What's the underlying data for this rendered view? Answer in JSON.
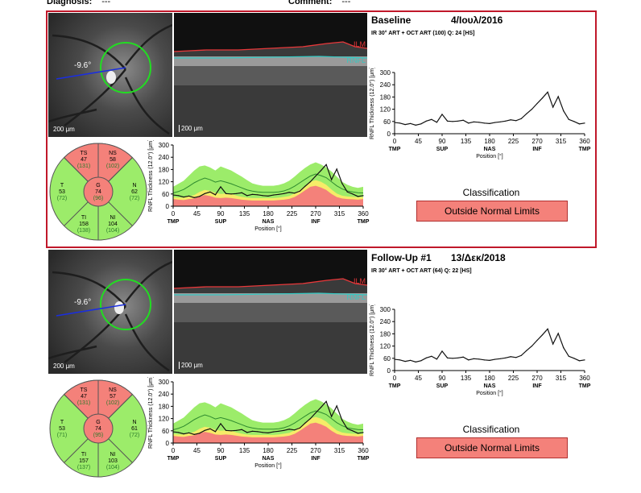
{
  "header": {
    "diagnosis_label": "Diagnosis:",
    "diagnosis_value": "---",
    "comment_label": "Comment:",
    "comment_value": "---"
  },
  "colors": {
    "selected_border": "#c0182a",
    "outside_limits": "#f4817a",
    "within_limits": "#9cec6a",
    "borderline": "#f6ec68",
    "scan_circle": "#22dd22",
    "scan_line": "#1a2ee0",
    "ilm": "#e8383a",
    "rnfl": "#36c8c2"
  },
  "exams": [
    {
      "title": "Baseline",
      "date": "4/Ιουλ/2016",
      "subtitle": "IR 30° ART + OCT ART (100) Q: 24 [HS]",
      "angle": "-9.6°",
      "scale": "200 μm",
      "oct_labels": {
        "ilm": "ILM",
        "rnfl": "RNFL"
      },
      "classification_label": "Classification",
      "classification_value": "Outside Normal Limits",
      "sectors": {
        "TS": {
          "name": "TS",
          "value": "47",
          "normal": "(131)"
        },
        "NS": {
          "name": "NS",
          "value": "58",
          "normal": "(102)"
        },
        "T": {
          "name": "T",
          "value": "53",
          "normal": "(72)"
        },
        "G": {
          "name": "G",
          "value": "74",
          "normal": "(96)"
        },
        "N": {
          "name": "N",
          "value": "62",
          "normal": "(72)"
        },
        "TI": {
          "name": "TI",
          "value": "158",
          "normal": "(138)"
        },
        "NI": {
          "name": "NI",
          "value": "104",
          "normal": "(104)"
        }
      }
    },
    {
      "title": "Follow-Up #1",
      "date": "13/Δεκ/2018",
      "subtitle": "IR 30° ART + OCT ART (64) Q: 22 [HS]",
      "angle": "-9.6°",
      "scale": "200 μm",
      "oct_labels": {
        "ilm": "ILM",
        "rnfl": "RNFL"
      },
      "classification_label": "Classification",
      "classification_value": "Outside Normal Limits",
      "sectors": {
        "TS": {
          "name": "TS",
          "value": "47",
          "normal": "(131)"
        },
        "NS": {
          "name": "NS",
          "value": "57",
          "normal": "(102)"
        },
        "T": {
          "name": "T",
          "value": "53",
          "normal": "(71)"
        },
        "G": {
          "name": "G",
          "value": "74",
          "normal": "(95)"
        },
        "N": {
          "name": "N",
          "value": "61",
          "normal": "(72)"
        },
        "TI": {
          "name": "TI",
          "value": "157",
          "normal": "(137)"
        },
        "NI": {
          "name": "NI",
          "value": "103",
          "normal": "(104)"
        }
      }
    }
  ],
  "chart_data": [
    {
      "type": "line",
      "ylabel": "RNFL Thickness (12.0°) [μm]",
      "xlabel": "Position [°]",
      "x_ticks": [
        "0",
        "45",
        "90",
        "135",
        "180",
        "225",
        "270",
        "315",
        "360"
      ],
      "y_ticks": [
        "0",
        "60",
        "120",
        "180",
        "240",
        "300"
      ],
      "region_labels": [
        "TMP",
        "SUP",
        "NAS",
        "INF",
        "TMP"
      ],
      "region_positions": [
        0,
        90,
        180,
        270,
        360
      ],
      "ylim": [
        0,
        300
      ],
      "xlim": [
        0,
        360
      ],
      "x": [
        0,
        10,
        20,
        30,
        40,
        50,
        60,
        70,
        80,
        90,
        100,
        110,
        120,
        130,
        140,
        150,
        160,
        170,
        180,
        190,
        200,
        210,
        220,
        230,
        240,
        250,
        260,
        270,
        280,
        290,
        300,
        310,
        320,
        330,
        340,
        350,
        360
      ],
      "series": [
        {
          "values": [
            55,
            52,
            45,
            50,
            42,
            48,
            62,
            70,
            56,
            95,
            62,
            60,
            62,
            66,
            52,
            58,
            56,
            52,
            50,
            55,
            58,
            62,
            68,
            64,
            74,
            98,
            120,
            148,
            175,
            204,
            130,
            182,
            112,
            70,
            60,
            48,
            52
          ]
        }
      ],
      "normal_limits": {
        "red_upper": [
          35,
          32,
          30,
          35,
          38,
          48,
          55,
          50,
          42,
          40,
          42,
          40,
          36,
          32,
          30,
          28,
          28,
          28,
          28,
          28,
          30,
          32,
          36,
          45,
          60,
          78,
          95,
          100,
          92,
          80,
          60,
          45,
          38,
          35,
          34,
          32,
          35
        ],
        "yellow_upper": [
          45,
          42,
          42,
          48,
          55,
          70,
          80,
          75,
          65,
          60,
          62,
          60,
          52,
          46,
          42,
          40,
          40,
          40,
          40,
          40,
          42,
          46,
          50,
          62,
          80,
          100,
          120,
          128,
          120,
          105,
          82,
          62,
          52,
          48,
          46,
          44,
          45
        ],
        "green_upper": [
          95,
          110,
          125,
          150,
          175,
          195,
          200,
          190,
          175,
          195,
          185,
          175,
          160,
          145,
          128,
          112,
          105,
          100,
          100,
          100,
          104,
          112,
          125,
          145,
          168,
          188,
          205,
          215,
          205,
          190,
          170,
          145,
          120,
          105,
          95,
          90,
          95
        ],
        "mean": [
          65,
          72,
          82,
          98,
          115,
          128,
          138,
          130,
          118,
          125,
          118,
          110,
          100,
          90,
          80,
          74,
          70,
          68,
          68,
          68,
          70,
          75,
          84,
          98,
          115,
          132,
          148,
          158,
          150,
          140,
          120,
          100,
          85,
          75,
          70,
          66,
          65
        ]
      }
    },
    {
      "type": "line",
      "ylabel": "RNFL Thickness (12.0°) [μm]",
      "xlabel": "Position [°]",
      "x_ticks": [
        "0",
        "45",
        "90",
        "135",
        "180",
        "225",
        "270",
        "315",
        "360"
      ],
      "y_ticks": [
        "0",
        "60",
        "120",
        "180",
        "240",
        "300"
      ],
      "region_labels": [
        "TMP",
        "SUP",
        "NAS",
        "INF",
        "TMP"
      ],
      "region_positions": [
        0,
        90,
        180,
        270,
        360
      ],
      "ylim": [
        0,
        300
      ],
      "xlim": [
        0,
        360
      ],
      "x": [
        0,
        10,
        20,
        30,
        40,
        50,
        60,
        70,
        80,
        90,
        100,
        110,
        120,
        130,
        140,
        150,
        160,
        170,
        180,
        190,
        200,
        210,
        220,
        230,
        240,
        250,
        260,
        270,
        280,
        290,
        300,
        310,
        320,
        330,
        340,
        350,
        360
      ],
      "series": [
        {
          "values": [
            55,
            52,
            45,
            50,
            42,
            48,
            62,
            70,
            56,
            95,
            62,
            60,
            62,
            66,
            52,
            58,
            56,
            52,
            50,
            55,
            58,
            62,
            68,
            64,
            74,
            98,
            120,
            148,
            175,
            204,
            130,
            182,
            112,
            70,
            60,
            48,
            52
          ]
        }
      ],
      "normal_limits": {
        "red_upper": [
          35,
          32,
          30,
          35,
          38,
          48,
          55,
          50,
          42,
          40,
          42,
          40,
          36,
          32,
          30,
          28,
          28,
          28,
          28,
          28,
          30,
          32,
          36,
          45,
          60,
          78,
          95,
          100,
          92,
          80,
          60,
          45,
          38,
          35,
          34,
          32,
          35
        ],
        "yellow_upper": [
          45,
          42,
          42,
          48,
          55,
          70,
          80,
          75,
          65,
          60,
          62,
          60,
          52,
          46,
          42,
          40,
          40,
          40,
          40,
          40,
          42,
          46,
          50,
          62,
          80,
          100,
          120,
          128,
          120,
          105,
          82,
          62,
          52,
          48,
          46,
          44,
          45
        ],
        "green_upper": [
          95,
          110,
          125,
          150,
          175,
          195,
          200,
          190,
          175,
          195,
          185,
          175,
          160,
          145,
          128,
          112,
          105,
          100,
          100,
          100,
          104,
          112,
          125,
          145,
          168,
          188,
          205,
          215,
          205,
          190,
          170,
          145,
          120,
          105,
          95,
          90,
          95
        ],
        "mean": [
          65,
          72,
          82,
          98,
          115,
          128,
          138,
          130,
          118,
          125,
          118,
          110,
          100,
          90,
          80,
          74,
          70,
          68,
          68,
          68,
          70,
          75,
          84,
          98,
          115,
          132,
          148,
          158,
          150,
          140,
          120,
          100,
          85,
          75,
          70,
          66,
          65
        ]
      }
    },
    {
      "type": "line",
      "ylabel": "RNFL Thickness (12.0°) [μm]",
      "xlabel": "Position [°]",
      "x_ticks": [
        "0",
        "45",
        "90",
        "135",
        "180",
        "225",
        "270",
        "315",
        "360"
      ],
      "y_ticks": [
        "0",
        "60",
        "120",
        "180",
        "240",
        "300"
      ],
      "region_labels": [
        "TMP",
        "SUP",
        "NAS",
        "INF",
        "TMP"
      ],
      "region_positions": [
        0,
        90,
        180,
        270,
        360
      ],
      "ylim": [
        0,
        300
      ],
      "xlim": [
        0,
        360
      ],
      "x": [
        0,
        10,
        20,
        30,
        40,
        50,
        60,
        70,
        80,
        90,
        100,
        110,
        120,
        130,
        140,
        150,
        160,
        170,
        180,
        190,
        200,
        210,
        220,
        230,
        240,
        250,
        260,
        270,
        280,
        290,
        300,
        310,
        320,
        330,
        340,
        350,
        360
      ],
      "series": [
        {
          "values": [
            55,
            52,
            45,
            50,
            42,
            48,
            62,
            70,
            56,
            95,
            62,
            60,
            62,
            66,
            52,
            58,
            56,
            52,
            50,
            55,
            58,
            62,
            68,
            64,
            74,
            98,
            120,
            148,
            175,
            204,
            130,
            182,
            112,
            70,
            60,
            48,
            52
          ]
        }
      ]
    },
    {
      "type": "line",
      "ylabel": "RNFL Thickness (12.0°) [μm]",
      "xlabel": "Position [°]",
      "x_ticks": [
        "0",
        "45",
        "90",
        "135",
        "180",
        "225",
        "270",
        "315",
        "360"
      ],
      "y_ticks": [
        "0",
        "60",
        "120",
        "180",
        "240",
        "300"
      ],
      "region_labels": [
        "TMP",
        "SUP",
        "NAS",
        "INF",
        "TMP"
      ],
      "region_positions": [
        0,
        90,
        180,
        270,
        360
      ],
      "ylim": [
        0,
        300
      ],
      "xlim": [
        0,
        360
      ],
      "x": [
        0,
        10,
        20,
        30,
        40,
        50,
        60,
        70,
        80,
        90,
        100,
        110,
        120,
        130,
        140,
        150,
        160,
        170,
        180,
        190,
        200,
        210,
        220,
        230,
        240,
        250,
        260,
        270,
        280,
        290,
        300,
        310,
        320,
        330,
        340,
        350,
        360
      ],
      "series": [
        {
          "values": [
            55,
            52,
            45,
            50,
            42,
            48,
            62,
            70,
            56,
            95,
            62,
            60,
            62,
            66,
            52,
            58,
            56,
            52,
            50,
            55,
            58,
            62,
            68,
            64,
            74,
            98,
            120,
            148,
            175,
            204,
            130,
            182,
            112,
            70,
            60,
            48,
            52
          ]
        }
      ]
    }
  ]
}
